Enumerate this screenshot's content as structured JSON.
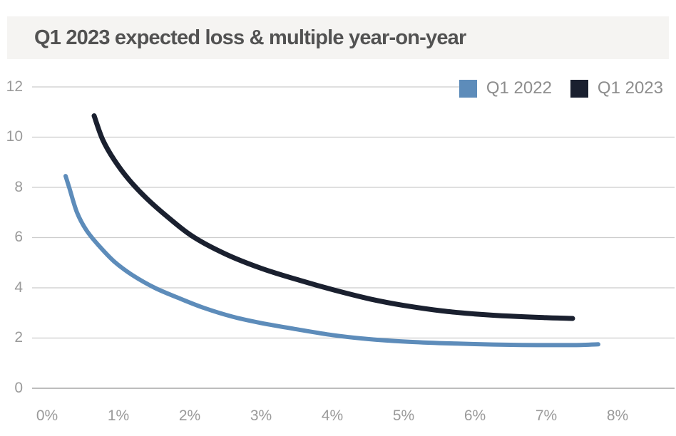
{
  "header": {
    "title": "Q1 2023 expected loss & multiple year-on-year"
  },
  "legend": {
    "position": "top-right",
    "items": [
      {
        "label": "Q1 2022",
        "color": "#5d8cba"
      },
      {
        "label": "Q1 2023",
        "color": "#1a202f"
      }
    ]
  },
  "colors": {
    "banner_background": "#f5f4f2",
    "title_text": "#525252",
    "axis_label_text": "#9a9a9a",
    "legend_text": "#8d8d8d",
    "gridline": "#cccccc",
    "zero_line": "#bdbdbd",
    "series_q1_2022": "#5d8cba",
    "series_q1_2023": "#1a202f"
  },
  "chart_data": {
    "type": "line",
    "title": "Q1 2023 expected loss & multiple year-on-year",
    "xlabel": "",
    "ylabel": "",
    "x_tick_labels": [
      "0%",
      "1%",
      "2%",
      "3%",
      "4%",
      "5%",
      "6%",
      "7%",
      "8%"
    ],
    "y_tick_labels": [
      "0",
      "2",
      "4",
      "6",
      "8",
      "10",
      "12"
    ],
    "x_tick_values": [
      0,
      1,
      2,
      3,
      4,
      5,
      6,
      7,
      8
    ],
    "y_tick_values": [
      0,
      2,
      4,
      6,
      8,
      10,
      12
    ],
    "xlim": [
      0,
      8.8
    ],
    "ylim": [
      0,
      12
    ],
    "grid": "horizontal",
    "legend_position": "top-right",
    "series": [
      {
        "name": "Q1 2022",
        "color": "#5d8cba",
        "stroke_width": 6,
        "points": [
          [
            0.26,
            8.45
          ],
          [
            0.31,
            8.0
          ],
          [
            0.42,
            7.0
          ],
          [
            0.55,
            6.3
          ],
          [
            0.72,
            5.7
          ],
          [
            0.94,
            5.05
          ],
          [
            1.2,
            4.5
          ],
          [
            1.51,
            4.0
          ],
          [
            1.84,
            3.6
          ],
          [
            2.2,
            3.2
          ],
          [
            2.6,
            2.85
          ],
          [
            3.0,
            2.6
          ],
          [
            3.5,
            2.35
          ],
          [
            4.0,
            2.12
          ],
          [
            4.5,
            1.96
          ],
          [
            5.0,
            1.86
          ],
          [
            5.5,
            1.8
          ],
          [
            6.0,
            1.76
          ],
          [
            6.5,
            1.73
          ],
          [
            7.0,
            1.72
          ],
          [
            7.4,
            1.72
          ],
          [
            7.73,
            1.75
          ]
        ]
      },
      {
        "name": "Q1 2023",
        "color": "#1a202f",
        "stroke_width": 7,
        "points": [
          [
            0.66,
            10.85
          ],
          [
            0.78,
            9.9
          ],
          [
            0.94,
            9.1
          ],
          [
            1.15,
            8.3
          ],
          [
            1.4,
            7.55
          ],
          [
            1.7,
            6.8
          ],
          [
            2.04,
            6.05
          ],
          [
            2.5,
            5.35
          ],
          [
            3.0,
            4.78
          ],
          [
            3.54,
            4.3
          ],
          [
            4.04,
            3.9
          ],
          [
            4.54,
            3.55
          ],
          [
            5.0,
            3.3
          ],
          [
            5.54,
            3.08
          ],
          [
            6.0,
            2.96
          ],
          [
            6.5,
            2.87
          ],
          [
            7.0,
            2.81
          ],
          [
            7.37,
            2.78
          ]
        ]
      }
    ]
  }
}
